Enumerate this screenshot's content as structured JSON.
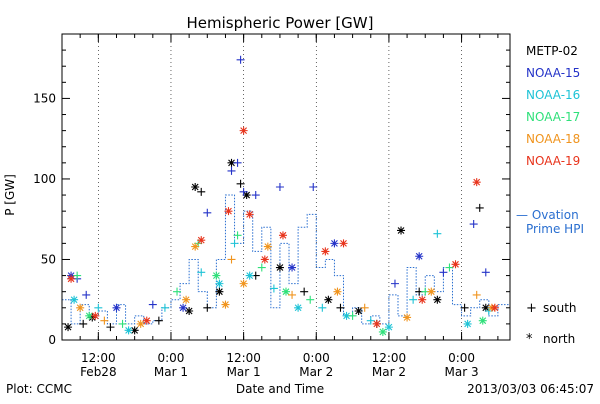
{
  "chart_data": {
    "type": "scatter",
    "title": "Hemispheric Power [GW]",
    "xlabel": "Date and Time",
    "ylabel": "P [GW]",
    "footer_left": "Plot: CCMC",
    "footer_right": "2013/03/03 06:45:07",
    "xlim": [
      "2013-02-28T06:00",
      "2013-03-03T08:00"
    ],
    "ylim": [
      0,
      190
    ],
    "y_ticks": [
      0,
      50,
      100,
      150
    ],
    "x_ticks": [
      {
        "t": "2013-02-28T12:00",
        "l1": "12:00",
        "l2": "Feb28"
      },
      {
        "t": "2013-03-01T00:00",
        "l1": "0:00",
        "l2": "Mar 1"
      },
      {
        "t": "2013-03-01T12:00",
        "l1": "12:00",
        "l2": "Mar 1"
      },
      {
        "t": "2013-03-02T00:00",
        "l1": "0:00",
        "l2": "Mar 2"
      },
      {
        "t": "2013-03-02T12:00",
        "l1": "12:00",
        "l2": "Mar 2"
      },
      {
        "t": "2013-03-03T00:00",
        "l1": "0:00",
        "l2": "Mar 3"
      }
    ],
    "grid": "dotted vertical at ticks",
    "legend_position": "right",
    "legend_markers": {
      "south": "+",
      "north": "*"
    },
    "legend_marker_labels": {
      "south": "south",
      "north": "north"
    },
    "series": [
      {
        "name": "METP-02",
        "color": "#000000",
        "points": [
          [
            "2013-02-28T07:00",
            8,
            "n"
          ],
          [
            "2013-02-28T09:30",
            10,
            "s"
          ],
          [
            "2013-02-28T11:00",
            14,
            "n"
          ],
          [
            "2013-02-28T14:00",
            8,
            "s"
          ],
          [
            "2013-02-28T18:00",
            6,
            "n"
          ],
          [
            "2013-02-28T22:00",
            12,
            "s"
          ],
          [
            "2013-03-01T03:00",
            18,
            "n"
          ],
          [
            "2013-03-01T04:00",
            95,
            "n"
          ],
          [
            "2013-03-01T05:00",
            92,
            "s"
          ],
          [
            "2013-03-01T06:00",
            20,
            "s"
          ],
          [
            "2013-03-01T08:00",
            30,
            "n"
          ],
          [
            "2013-03-01T10:00",
            110,
            "n"
          ],
          [
            "2013-03-01T11:30",
            97,
            "s"
          ],
          [
            "2013-03-01T12:30",
            90,
            "n"
          ],
          [
            "2013-03-01T14:00",
            40,
            "s"
          ],
          [
            "2013-03-01T18:00",
            45,
            "n"
          ],
          [
            "2013-03-01T22:00",
            30,
            "s"
          ],
          [
            "2013-03-02T02:00",
            25,
            "n"
          ],
          [
            "2013-03-02T04:00",
            20,
            "s"
          ],
          [
            "2013-03-02T07:00",
            18,
            "n"
          ],
          [
            "2013-03-02T10:00",
            10,
            "s"
          ],
          [
            "2013-03-02T14:00",
            68,
            "n"
          ],
          [
            "2013-03-02T17:00",
            30,
            "s"
          ],
          [
            "2013-03-02T20:00",
            25,
            "n"
          ],
          [
            "2013-03-03T00:30",
            20,
            "s"
          ],
          [
            "2013-03-03T03:00",
            82,
            "s"
          ],
          [
            "2013-03-03T04:00",
            20,
            "n"
          ]
        ]
      },
      {
        "name": "NOAA-15",
        "color": "#2433c8",
        "points": [
          [
            "2013-02-28T07:30",
            40,
            "n"
          ],
          [
            "2013-02-28T08:30",
            38,
            "s"
          ],
          [
            "2013-02-28T10:00",
            28,
            "s"
          ],
          [
            "2013-02-28T15:00",
            20,
            "n"
          ],
          [
            "2013-02-28T21:00",
            22,
            "s"
          ],
          [
            "2013-03-01T02:00",
            20,
            "n"
          ],
          [
            "2013-03-01T06:00",
            79,
            "s"
          ],
          [
            "2013-03-01T10:00",
            105,
            "s"
          ],
          [
            "2013-03-01T11:00",
            110,
            "s"
          ],
          [
            "2013-03-01T11:30",
            174,
            "s"
          ],
          [
            "2013-03-01T12:00",
            92,
            "s"
          ],
          [
            "2013-03-01T14:00",
            90,
            "s"
          ],
          [
            "2013-03-01T18:00",
            95,
            "s"
          ],
          [
            "2013-03-01T20:00",
            45,
            "n"
          ],
          [
            "2013-03-01T23:30",
            95,
            "s"
          ],
          [
            "2013-03-02T03:00",
            60,
            "n"
          ],
          [
            "2013-03-02T13:00",
            35,
            "s"
          ],
          [
            "2013-03-02T17:00",
            52,
            "n"
          ],
          [
            "2013-03-02T21:00",
            42,
            "s"
          ],
          [
            "2013-03-03T02:00",
            72,
            "s"
          ],
          [
            "2013-03-03T04:00",
            42,
            "s"
          ]
        ]
      },
      {
        "name": "NOAA-16",
        "color": "#1ec3d6",
        "points": [
          [
            "2013-02-28T08:00",
            25,
            "n"
          ],
          [
            "2013-02-28T12:00",
            20,
            "s"
          ],
          [
            "2013-02-28T17:00",
            6,
            "n"
          ],
          [
            "2013-02-28T23:00",
            20,
            "s"
          ],
          [
            "2013-03-01T05:00",
            42,
            "s"
          ],
          [
            "2013-03-01T08:00",
            35,
            "n"
          ],
          [
            "2013-03-01T10:30",
            60,
            "s"
          ],
          [
            "2013-03-01T13:00",
            40,
            "n"
          ],
          [
            "2013-03-01T17:00",
            32,
            "s"
          ],
          [
            "2013-03-01T21:00",
            20,
            "n"
          ],
          [
            "2013-03-02T01:00",
            20,
            "s"
          ],
          [
            "2013-03-02T05:00",
            15,
            "n"
          ],
          [
            "2013-03-02T09:00",
            12,
            "s"
          ],
          [
            "2013-03-02T12:00",
            8,
            "n"
          ],
          [
            "2013-03-02T16:00",
            25,
            "s"
          ],
          [
            "2013-03-02T20:00",
            66,
            "s"
          ],
          [
            "2013-03-03T01:00",
            10,
            "n"
          ],
          [
            "2013-03-03T04:30",
            18,
            "s"
          ]
        ]
      },
      {
        "name": "NOAA-17",
        "color": "#2fe07a",
        "points": [
          [
            "2013-02-28T08:30",
            40,
            "s"
          ],
          [
            "2013-02-28T10:30",
            15,
            "n"
          ],
          [
            "2013-02-28T16:00",
            10,
            "s"
          ],
          [
            "2013-03-01T01:00",
            30,
            "s"
          ],
          [
            "2013-03-01T04:30",
            60,
            "s"
          ],
          [
            "2013-03-01T07:30",
            40,
            "n"
          ],
          [
            "2013-03-01T11:00",
            65,
            "s"
          ],
          [
            "2013-03-01T15:00",
            45,
            "s"
          ],
          [
            "2013-03-01T19:00",
            30,
            "n"
          ],
          [
            "2013-03-01T23:00",
            25,
            "s"
          ],
          [
            "2013-03-02T06:00",
            15,
            "s"
          ],
          [
            "2013-03-02T11:00",
            5,
            "n"
          ],
          [
            "2013-03-02T18:00",
            30,
            "s"
          ],
          [
            "2013-03-02T22:00",
            45,
            "s"
          ],
          [
            "2013-03-03T03:30",
            12,
            "n"
          ]
        ]
      },
      {
        "name": "NOAA-18",
        "color": "#f0941e",
        "points": [
          [
            "2013-02-28T09:00",
            20,
            "n"
          ],
          [
            "2013-02-28T13:00",
            12,
            "s"
          ],
          [
            "2013-02-28T19:00",
            10,
            "n"
          ],
          [
            "2013-03-01T02:30",
            25,
            "n"
          ],
          [
            "2013-03-01T04:00",
            58,
            "n"
          ],
          [
            "2013-03-01T09:00",
            22,
            "n"
          ],
          [
            "2013-03-01T10:00",
            50,
            "s"
          ],
          [
            "2013-03-01T12:00",
            35,
            "n"
          ],
          [
            "2013-03-01T16:00",
            58,
            "n"
          ],
          [
            "2013-03-01T20:00",
            28,
            "s"
          ],
          [
            "2013-03-02T03:30",
            30,
            "n"
          ],
          [
            "2013-03-02T08:00",
            20,
            "s"
          ],
          [
            "2013-03-02T15:00",
            14,
            "n"
          ],
          [
            "2013-03-02T19:00",
            30,
            "n"
          ],
          [
            "2013-03-03T02:30",
            28,
            "s"
          ],
          [
            "2013-03-03T05:00",
            20,
            "n"
          ]
        ]
      },
      {
        "name": "NOAA-19",
        "color": "#e8341c",
        "points": [
          [
            "2013-02-28T07:30",
            38,
            "n"
          ],
          [
            "2013-02-28T11:30",
            15,
            "n"
          ],
          [
            "2013-02-28T20:00",
            12,
            "n"
          ],
          [
            "2013-03-01T05:00",
            62,
            "n"
          ],
          [
            "2013-03-01T09:30",
            80,
            "n"
          ],
          [
            "2013-03-01T12:00",
            130,
            "n"
          ],
          [
            "2013-03-01T13:00",
            78,
            "n"
          ],
          [
            "2013-03-01T15:30",
            50,
            "n"
          ],
          [
            "2013-03-01T18:30",
            65,
            "n"
          ],
          [
            "2013-03-02T01:30",
            55,
            "n"
          ],
          [
            "2013-03-02T04:30",
            60,
            "n"
          ],
          [
            "2013-03-02T10:00",
            10,
            "n"
          ],
          [
            "2013-03-02T17:30",
            25,
            "n"
          ],
          [
            "2013-03-02T23:00",
            47,
            "n"
          ],
          [
            "2013-03-03T02:30",
            98,
            "n"
          ],
          [
            "2013-03-03T05:30",
            20,
            "n"
          ]
        ]
      }
    ],
    "ovation": {
      "name": "— Ovation Prime HPI",
      "color": "#2a6fd0",
      "steps": [
        [
          "2013-02-28T06:00",
          25
        ],
        [
          "2013-02-28T07:30",
          10
        ],
        [
          "2013-02-28T09:00",
          22
        ],
        [
          "2013-02-28T10:30",
          15
        ],
        [
          "2013-02-28T12:00",
          18
        ],
        [
          "2013-02-28T13:30",
          10
        ],
        [
          "2013-02-28T15:00",
          22
        ],
        [
          "2013-02-28T16:30",
          10
        ],
        [
          "2013-02-28T18:00",
          15
        ],
        [
          "2013-02-28T19:30",
          10
        ],
        [
          "2013-02-28T21:00",
          12
        ],
        [
          "2013-02-28T22:30",
          20
        ],
        [
          "2013-03-01T00:00",
          25
        ],
        [
          "2013-03-01T01:30",
          35
        ],
        [
          "2013-03-01T03:00",
          50
        ],
        [
          "2013-03-01T04:30",
          30
        ],
        [
          "2013-03-01T06:00",
          20
        ],
        [
          "2013-03-01T07:30",
          50
        ],
        [
          "2013-03-01T09:00",
          90
        ],
        [
          "2013-03-01T10:30",
          60
        ],
        [
          "2013-03-01T12:00",
          80
        ],
        [
          "2013-03-01T13:30",
          55
        ],
        [
          "2013-03-01T15:00",
          70
        ],
        [
          "2013-03-01T16:30",
          20
        ],
        [
          "2013-03-01T18:00",
          60
        ],
        [
          "2013-03-01T19:30",
          35
        ],
        [
          "2013-03-01T21:00",
          70
        ],
        [
          "2013-03-01T22:30",
          78
        ],
        [
          "2013-03-02T00:00",
          45
        ],
        [
          "2013-03-02T01:30",
          50
        ],
        [
          "2013-03-02T03:00",
          40
        ],
        [
          "2013-03-02T04:30",
          15
        ],
        [
          "2013-03-02T06:00",
          20
        ],
        [
          "2013-03-02T07:30",
          10
        ],
        [
          "2013-03-02T09:00",
          15
        ],
        [
          "2013-03-02T10:30",
          10
        ],
        [
          "2013-03-02T12:00",
          28
        ],
        [
          "2013-03-02T13:30",
          15
        ],
        [
          "2013-03-02T15:00",
          45
        ],
        [
          "2013-03-02T16:30",
          28
        ],
        [
          "2013-03-02T18:00",
          40
        ],
        [
          "2013-03-02T19:30",
          30
        ],
        [
          "2013-03-02T21:00",
          45
        ],
        [
          "2013-03-02T22:30",
          22
        ],
        [
          "2013-03-03T00:00",
          15
        ],
        [
          "2013-03-03T01:30",
          20
        ],
        [
          "2013-03-03T03:00",
          25
        ],
        [
          "2013-03-03T04:30",
          15
        ],
        [
          "2013-03-03T06:00",
          22
        ]
      ]
    }
  }
}
